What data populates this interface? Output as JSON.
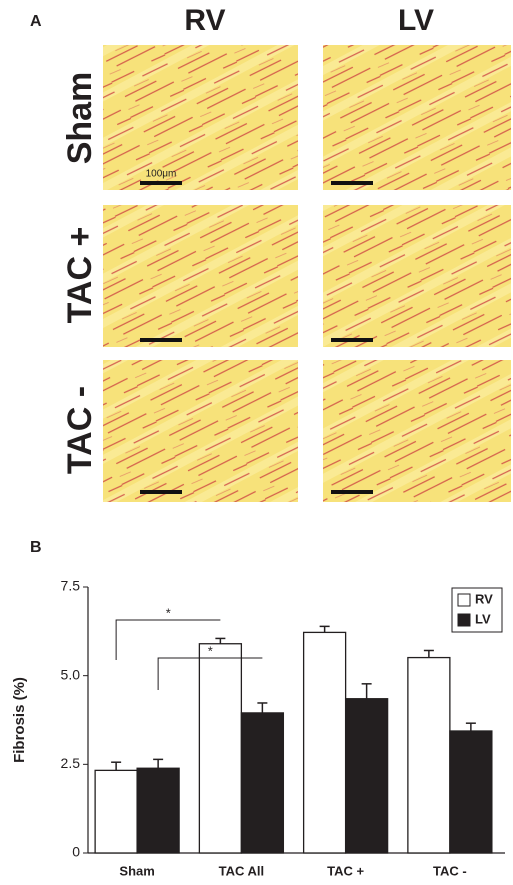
{
  "panel_a": {
    "label": "A",
    "columns": [
      "RV",
      "LV"
    ],
    "rows": [
      "Sham",
      "TAC +",
      "TAC -"
    ],
    "scale_bar": "100μm"
  },
  "chart_data": {
    "type": "bar",
    "panel_label": "B",
    "ylabel": "Fibrosis (%)",
    "categories": [
      "Sham",
      "TAC All",
      "TAC +",
      "TAC -"
    ],
    "series": [
      {
        "name": "RV",
        "color": "#ffffff",
        "values": [
          2.33,
          5.9,
          6.22,
          5.51
        ],
        "errors": [
          0.23,
          0.15,
          0.17,
          0.2
        ]
      },
      {
        "name": "LV",
        "color": "#231f20",
        "values": [
          2.39,
          3.95,
          4.35,
          3.44
        ],
        "errors": [
          0.25,
          0.28,
          0.42,
          0.22
        ]
      }
    ],
    "ylim": [
      0,
      7.5
    ],
    "yticks": [
      0,
      2.5,
      {
        "value": 5,
        "label": "5.0"
      },
      7.5
    ],
    "significance": [
      "*",
      "*"
    ],
    "legend": "upper right",
    "grid": false
  }
}
